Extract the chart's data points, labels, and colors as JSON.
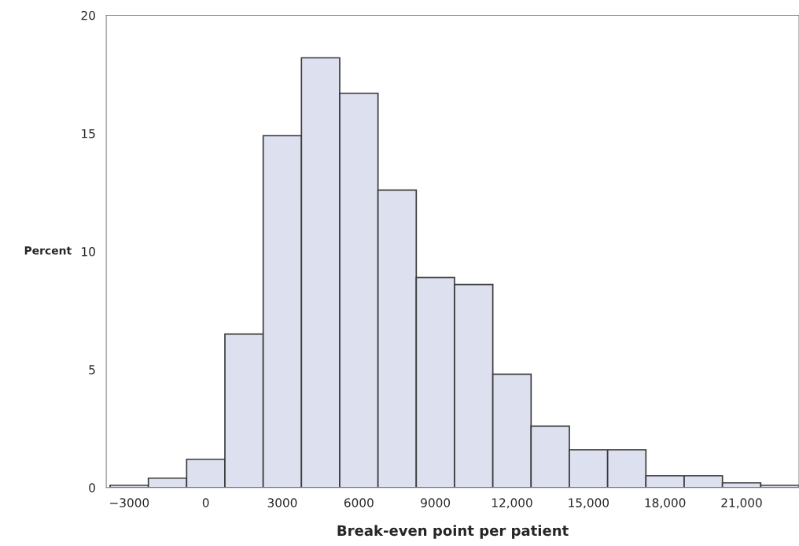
{
  "chart_data": {
    "type": "histogram",
    "xlabel": "Break-even point per patient",
    "ylabel": "Percent",
    "bins": [
      -3750,
      -2250,
      -750,
      750,
      2250,
      3750,
      5250,
      6750,
      8250,
      9750,
      11250,
      12750,
      14250,
      15750,
      17250,
      18750,
      20250,
      21750,
      23250
    ],
    "values": [
      0.1,
      0.4,
      1.2,
      6.5,
      14.9,
      18.2,
      16.7,
      12.6,
      8.9,
      8.6,
      4.8,
      2.6,
      1.6,
      1.6,
      0.5,
      0.5,
      0.2,
      0.1
    ],
    "color": "#dde0ee",
    "xlim": [
      -3900,
      23250
    ],
    "xticks": [
      -3000,
      0,
      3000,
      6000,
      9000,
      {
        "value": 12000,
        "label": "12,000"
      },
      {
        "value": 15000,
        "label": "15,000"
      },
      {
        "value": 18000,
        "label": "18,000"
      },
      {
        "value": 21000,
        "label": "21,000"
      }
    ],
    "ylim": [
      0,
      20
    ],
    "yticks": [
      0,
      5,
      10,
      15,
      20
    ],
    "grid": false
  }
}
